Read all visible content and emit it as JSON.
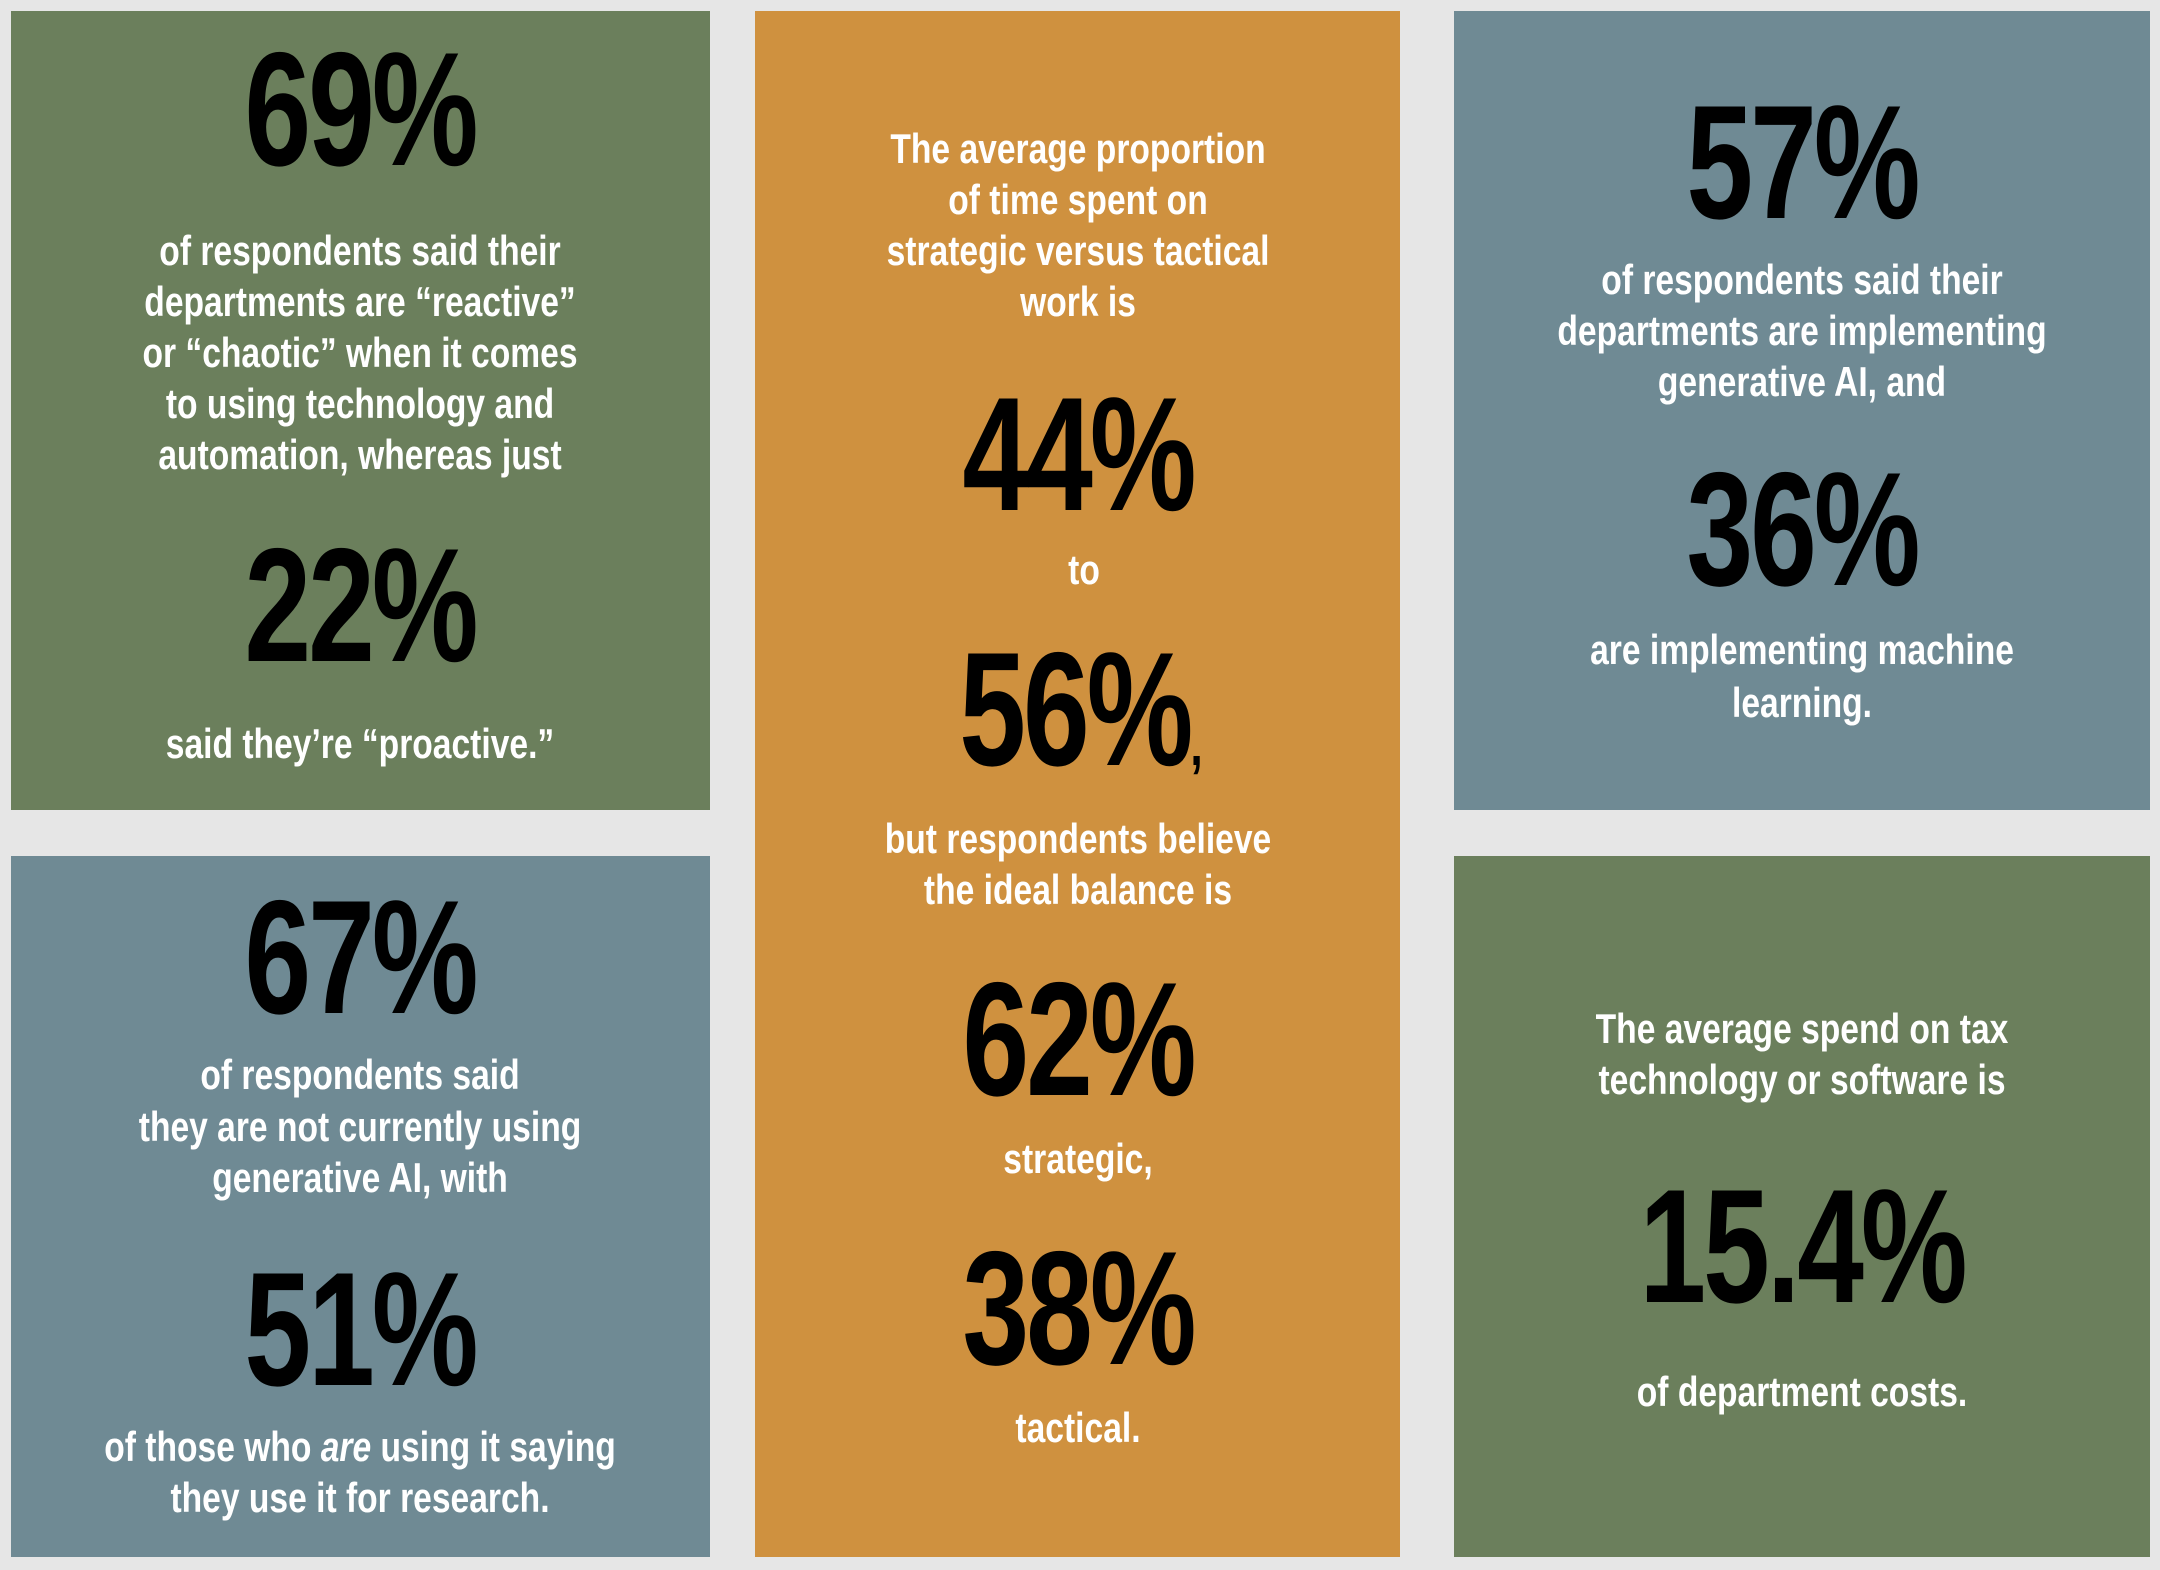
{
  "panels": {
    "top_left": {
      "stat1": "69%",
      "text1": [
        "of respondents said their",
        "departments are “reactive”",
        "or “chaotic” when it comes",
        "to using technology and",
        "automation, whereas just"
      ],
      "stat2": "22%",
      "text2": "said they’re “proactive.”"
    },
    "bottom_left": {
      "stat1": "67%",
      "text1": [
        "of respondents said",
        "they are not currently using",
        "generative AI, with"
      ],
      "stat2": "51%",
      "text2_a": "of those who ",
      "text2_em": "are",
      "text2_b": " using it saying",
      "text2_line2": "they use it for research."
    },
    "middle": {
      "intro": [
        "The average proportion",
        "of time spent on",
        "strategic versus tactical",
        "work is"
      ],
      "stat1": "44%",
      "to": "to",
      "stat2": "56%",
      "comma": ",",
      "text2": [
        "but respondents believe",
        "the ideal balance is"
      ],
      "stat3": "62%",
      "strategic": "strategic,",
      "stat4": "38%",
      "tactical": "tactical."
    },
    "top_right": {
      "stat1": "57%",
      "text1": [
        "of respondents said their",
        "departments are implementing",
        "generative AI, and"
      ],
      "stat2": "36%",
      "text2": [
        "are implementing machine",
        "learning."
      ]
    },
    "bottom_right": {
      "intro": [
        "The average spend on tax",
        "technology or software is"
      ],
      "stat": "15.4%",
      "text": "of department costs."
    }
  },
  "colors": {
    "green": "#6b7f5c",
    "blue": "#6f8a94",
    "orange": "#cf913f",
    "background": "#e6e6e6"
  }
}
